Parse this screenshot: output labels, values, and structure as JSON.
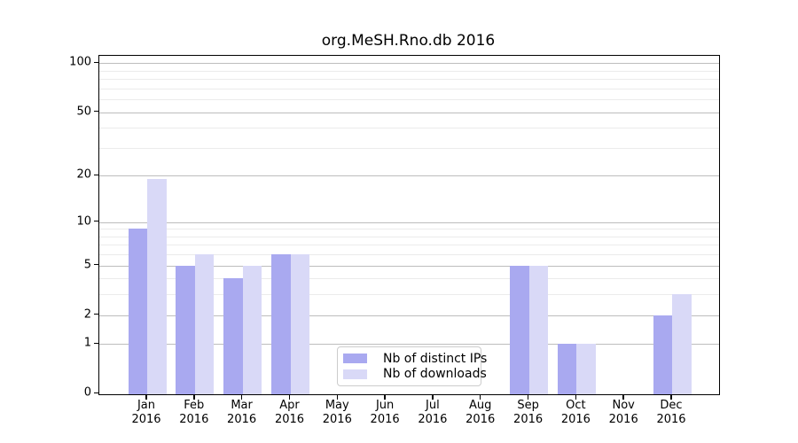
{
  "chart": {
    "title": "org.MeSH.Rno.db 2016"
  },
  "chart_data": {
    "type": "bar",
    "title": "org.MeSH.Rno.db 2016",
    "categories": [
      "Jan",
      "Feb",
      "Mar",
      "Apr",
      "May",
      "Jun",
      "Jul",
      "Aug",
      "Sep",
      "Oct",
      "Nov",
      "Dec"
    ],
    "category_year": "2016",
    "series": [
      {
        "name": "Nb of distinct IPs",
        "color": "#a9a9f0",
        "values": [
          9,
          5,
          4,
          6,
          0,
          0,
          0,
          0,
          5,
          1,
          0,
          2
        ]
      },
      {
        "name": "Nb of downloads",
        "color": "#d9d9f7",
        "values": [
          19,
          6,
          5,
          6,
          0,
          0,
          0,
          0,
          5,
          1,
          0,
          3
        ]
      }
    ],
    "yscale": "log1p",
    "ylim": [
      0,
      112
    ],
    "yticks": [
      0,
      1,
      2,
      5,
      10,
      20,
      50,
      100
    ],
    "yticks_minor": [
      3,
      4,
      6,
      7,
      8,
      9,
      30,
      40,
      60,
      70,
      80,
      90
    ],
    "grid": true,
    "legend_position": "lower center",
    "axis_color": "#000000",
    "grid_major_color": "#bdbdbd",
    "grid_minor_color": "#ebebeb"
  }
}
